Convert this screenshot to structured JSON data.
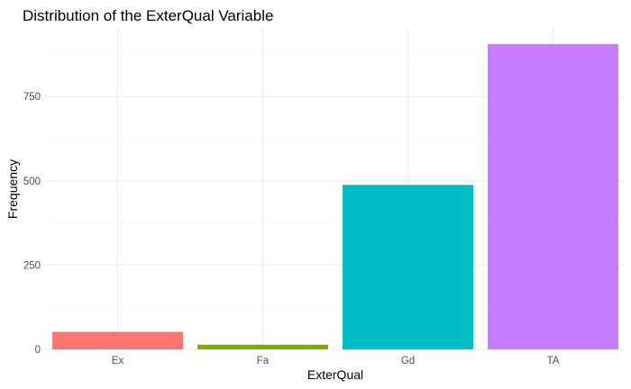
{
  "chart_data": {
    "type": "bar",
    "title": "Distribution of the ExterQual Variable",
    "xlabel": "ExterQual",
    "ylabel": "Frequency",
    "categories": [
      "Ex",
      "Fa",
      "Gd",
      "TA"
    ],
    "values": [
      52,
      14,
      488,
      906
    ],
    "colors": [
      "#F8766D",
      "#7CAE00",
      "#00BFC4",
      "#C77CFF"
    ],
    "ylim": [
      0,
      951
    ],
    "yticks": [
      0,
      250,
      500,
      750
    ],
    "ytick_labels": [
      "0",
      "250",
      "500",
      "750"
    ],
    "grid": true,
    "legend": "none"
  }
}
